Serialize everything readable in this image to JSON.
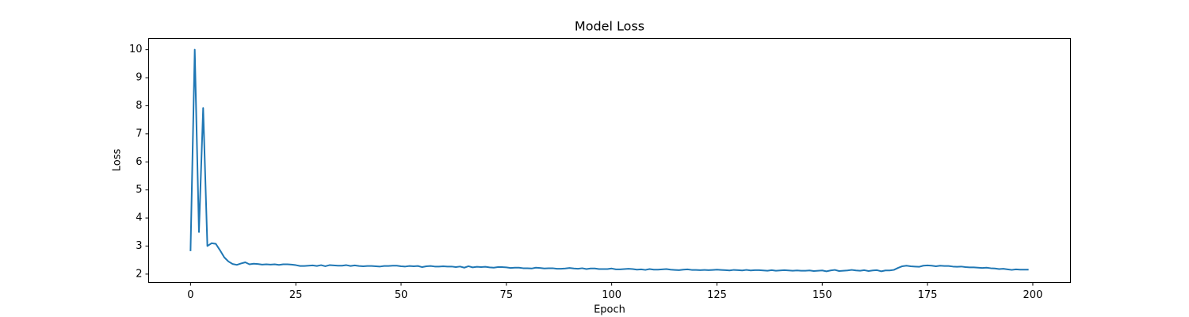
{
  "chart_data": {
    "type": "line",
    "title": "Model Loss",
    "x_label": "Epoch",
    "y_label": "Loss",
    "color": "#1f77b4",
    "x": [
      0,
      1,
      2,
      3,
      4,
      5,
      6,
      7,
      8,
      9,
      10,
      11,
      12,
      13,
      14,
      15,
      16,
      17,
      18,
      19,
      20,
      21,
      22,
      23,
      24,
      25,
      26,
      27,
      28,
      29,
      30,
      31,
      32,
      33,
      34,
      35,
      36,
      37,
      38,
      39,
      40,
      41,
      42,
      43,
      44,
      45,
      46,
      47,
      48,
      49,
      50,
      51,
      52,
      53,
      54,
      55,
      56,
      57,
      58,
      59,
      60,
      61,
      62,
      63,
      64,
      65,
      66,
      67,
      68,
      69,
      70,
      71,
      72,
      73,
      74,
      75,
      76,
      77,
      78,
      79,
      80,
      81,
      82,
      83,
      84,
      85,
      86,
      87,
      88,
      89,
      90,
      91,
      92,
      93,
      94,
      95,
      96,
      97,
      98,
      99,
      100,
      101,
      102,
      103,
      104,
      105,
      106,
      107,
      108,
      109,
      110,
      111,
      112,
      113,
      114,
      115,
      116,
      117,
      118,
      119,
      120,
      121,
      122,
      123,
      124,
      125,
      126,
      127,
      128,
      129,
      130,
      131,
      132,
      133,
      134,
      135,
      136,
      137,
      138,
      139,
      140,
      141,
      142,
      143,
      144,
      145,
      146,
      147,
      148,
      149,
      150,
      151,
      152,
      153,
      154,
      155,
      156,
      157,
      158,
      159,
      160,
      161,
      162,
      163,
      164,
      165,
      166,
      167,
      168,
      169,
      170,
      171,
      172,
      173,
      174,
      175,
      176,
      177,
      178,
      179,
      180,
      181,
      182,
      183,
      184,
      185,
      186,
      187,
      188,
      189,
      190,
      191,
      192,
      193,
      194,
      195,
      196,
      197,
      198,
      199
    ],
    "values": [
      2.82,
      10.0,
      3.5,
      7.92,
      3.0,
      3.1,
      3.08,
      2.85,
      2.6,
      2.45,
      2.36,
      2.33,
      2.38,
      2.42,
      2.35,
      2.37,
      2.36,
      2.34,
      2.35,
      2.34,
      2.35,
      2.33,
      2.35,
      2.35,
      2.34,
      2.32,
      2.29,
      2.29,
      2.3,
      2.31,
      2.29,
      2.32,
      2.28,
      2.32,
      2.31,
      2.3,
      2.3,
      2.32,
      2.29,
      2.31,
      2.29,
      2.28,
      2.29,
      2.29,
      2.28,
      2.27,
      2.29,
      2.29,
      2.3,
      2.3,
      2.28,
      2.27,
      2.29,
      2.28,
      2.29,
      2.25,
      2.28,
      2.29,
      2.27,
      2.27,
      2.28,
      2.27,
      2.27,
      2.25,
      2.27,
      2.23,
      2.28,
      2.24,
      2.26,
      2.25,
      2.26,
      2.24,
      2.23,
      2.25,
      2.25,
      2.24,
      2.22,
      2.23,
      2.23,
      2.21,
      2.21,
      2.2,
      2.23,
      2.22,
      2.2,
      2.21,
      2.21,
      2.19,
      2.19,
      2.2,
      2.22,
      2.2,
      2.19,
      2.21,
      2.18,
      2.2,
      2.2,
      2.18,
      2.18,
      2.18,
      2.2,
      2.17,
      2.17,
      2.18,
      2.19,
      2.18,
      2.16,
      2.17,
      2.15,
      2.18,
      2.16,
      2.16,
      2.17,
      2.18,
      2.16,
      2.15,
      2.14,
      2.16,
      2.17,
      2.15,
      2.15,
      2.14,
      2.15,
      2.14,
      2.15,
      2.16,
      2.15,
      2.14,
      2.13,
      2.15,
      2.14,
      2.13,
      2.15,
      2.13,
      2.14,
      2.14,
      2.13,
      2.12,
      2.14,
      2.12,
      2.13,
      2.14,
      2.13,
      2.12,
      2.13,
      2.12,
      2.12,
      2.13,
      2.11,
      2.12,
      2.13,
      2.1,
      2.13,
      2.15,
      2.11,
      2.12,
      2.13,
      2.15,
      2.13,
      2.12,
      2.14,
      2.11,
      2.13,
      2.14,
      2.1,
      2.13,
      2.13,
      2.15,
      2.22,
      2.28,
      2.3,
      2.28,
      2.27,
      2.26,
      2.3,
      2.31,
      2.3,
      2.28,
      2.3,
      2.29,
      2.29,
      2.27,
      2.26,
      2.27,
      2.25,
      2.24,
      2.24,
      2.23,
      2.22,
      2.23,
      2.21,
      2.2,
      2.18,
      2.19,
      2.17,
      2.15,
      2.17,
      2.16,
      2.16,
      2.16
    ],
    "xlim": [
      -9.95,
      208.95
    ],
    "xticks": [
      0,
      25,
      50,
      75,
      100,
      125,
      150,
      175,
      200
    ],
    "ylim": [
      1.7,
      10.4
    ],
    "yticks": [
      2,
      3,
      4,
      5,
      6,
      7,
      8,
      9,
      10
    ]
  }
}
